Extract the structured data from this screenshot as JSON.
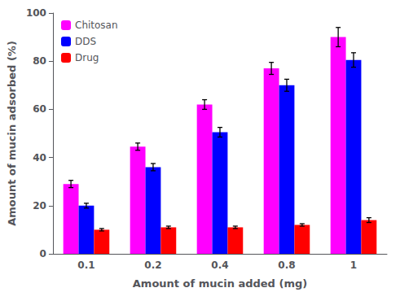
{
  "chart_data": {
    "type": "bar",
    "xlabel": "Amount of mucin added (mg)",
    "ylabel": "Amount of mucin adsorbed (%)",
    "categories": [
      "0.1",
      "0.2",
      "0.4",
      "0.8",
      "1"
    ],
    "series": [
      {
        "name": "Chitosan",
        "color": "#FF00FF",
        "values": [
          29,
          44.5,
          62,
          77,
          90
        ],
        "errors": [
          1.5,
          1.5,
          2.0,
          2.5,
          4.0
        ]
      },
      {
        "name": "DDS",
        "color": "#0000FF",
        "values": [
          20,
          36,
          50.5,
          70,
          80.5
        ],
        "errors": [
          1.0,
          1.5,
          2.0,
          2.5,
          3.0
        ]
      },
      {
        "name": "Drug",
        "color": "#FF0000",
        "values": [
          10,
          11,
          11,
          12,
          14
        ],
        "errors": [
          0.5,
          0.5,
          0.5,
          0.5,
          1.0
        ]
      }
    ],
    "ylim": [
      0,
      100
    ],
    "yticks": [
      0,
      20,
      40,
      60,
      80,
      100
    ],
    "grid": false,
    "legend": "upper left"
  }
}
